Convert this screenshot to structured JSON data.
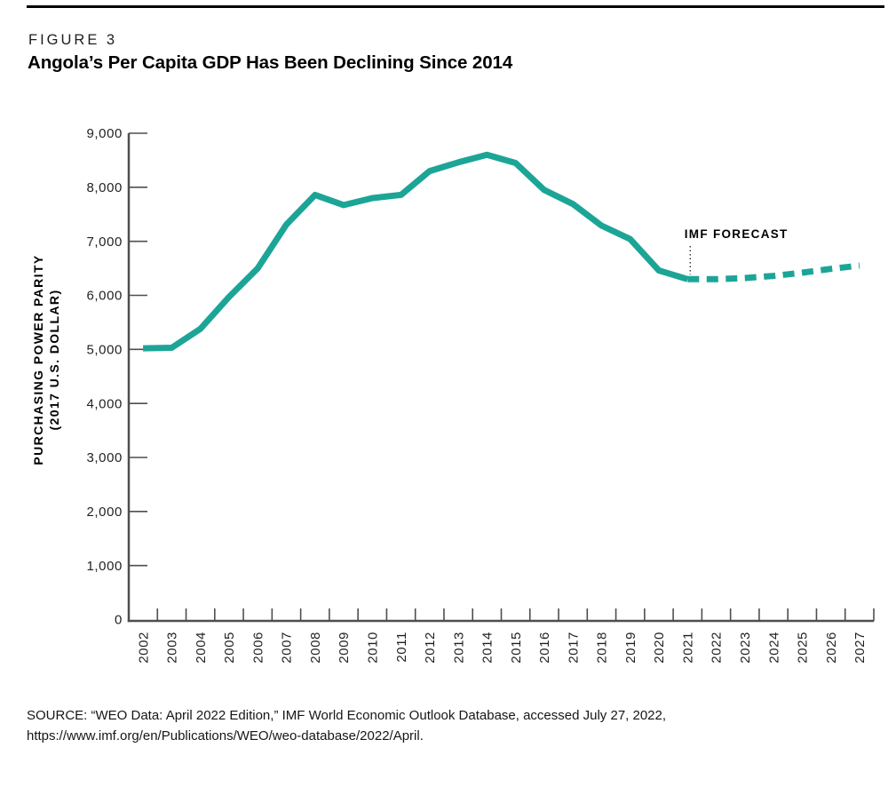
{
  "figure": {
    "label": "FIGURE 3",
    "title": "Angola’s Per Capita GDP Has Been Declining Since 2014"
  },
  "source": {
    "line1": "SOURCE: “WEO Data: April 2022 Edition,” IMF World Economic Outlook Database, accessed July 27, 2022,",
    "line2": "https://www.imf.org/en/Publications/WEO/weo-database/2022/April."
  },
  "chart_data": {
    "type": "line",
    "title": "Angola’s Per Capita GDP Has Been Declining Since 2014",
    "ylabel_line1": "PURCHASING POWER PARITY",
    "ylabel_line2": "(2017 U.S. DOLLAR)",
    "xlabel": "",
    "x": [
      2002,
      2003,
      2004,
      2005,
      2006,
      2007,
      2008,
      2009,
      2010,
      2011,
      2012,
      2013,
      2014,
      2015,
      2016,
      2017,
      2018,
      2019,
      2020,
      2021,
      2022,
      2023,
      2024,
      2025,
      2026,
      2027
    ],
    "series": [
      {
        "name": "Angola per capita GDP, purchasing power parity (2017 U.S. dollar)",
        "values": [
          5020,
          5030,
          5380,
          5970,
          6500,
          7310,
          7860,
          7670,
          7800,
          7860,
          8300,
          8460,
          8600,
          8450,
          7950,
          7690,
          7290,
          7040,
          6460,
          6300,
          6300,
          6320,
          6360,
          6420,
          6490,
          6550
        ]
      }
    ],
    "forecast_start_year": 2021,
    "forecast_label": "IMF FORECAST",
    "forecast_style": "dashed",
    "y_ticks": [
      0,
      1000,
      2000,
      3000,
      4000,
      5000,
      6000,
      7000,
      8000,
      9000
    ],
    "ylim": [
      0,
      9000
    ],
    "grid": false,
    "legend": "none",
    "line_color": "#1CA597",
    "axis_color": "#4d4e50",
    "label_color": "#231f20"
  }
}
